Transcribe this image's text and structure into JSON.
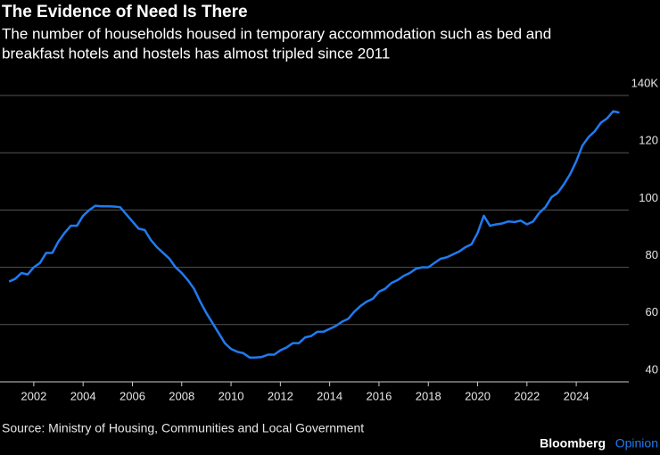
{
  "chart_data": {
    "type": "line",
    "title": "The Evidence of Need Is There",
    "subtitle": [
      "The number of households housed in temporary accommodation such as bed and",
      "breakfast hotels and hostels has almost tripled since 2011"
    ],
    "source": "Source: Ministry of Housing, Communities and Local Government",
    "brand": [
      "Bloomberg",
      "Opinion"
    ],
    "grid": true,
    "xlim": [
      2000.63,
      2026.13
    ],
    "xticks": [
      2002,
      2004,
      2006,
      2008,
      2010,
      2012,
      2014,
      2016,
      2018,
      2020,
      2022,
      2024
    ],
    "ylim": [
      40,
      140
    ],
    "yticks": [
      40,
      60,
      80,
      100,
      120,
      {
        "value": 140,
        "label": "140K"
      }
    ],
    "x": [
      2001.0,
      2001.25,
      2001.5,
      2001.75,
      2002.0,
      2002.25,
      2002.5,
      2002.75,
      2003.0,
      2003.25,
      2003.5,
      2003.75,
      2004.0,
      2004.25,
      2004.5,
      2004.75,
      2005.0,
      2005.25,
      2005.5,
      2005.75,
      2006.0,
      2006.25,
      2006.5,
      2006.75,
      2007.0,
      2007.25,
      2007.5,
      2007.75,
      2008.0,
      2008.25,
      2008.5,
      2008.75,
      2009.0,
      2009.25,
      2009.5,
      2009.75,
      2010.0,
      2010.25,
      2010.5,
      2010.75,
      2011.0,
      2011.25,
      2011.5,
      2011.75,
      2012.0,
      2012.25,
      2012.5,
      2012.75,
      2013.0,
      2013.25,
      2013.5,
      2013.75,
      2014.0,
      2014.25,
      2014.5,
      2014.75,
      2015.0,
      2015.25,
      2015.5,
      2015.75,
      2016.0,
      2016.25,
      2016.5,
      2016.75,
      2017.0,
      2017.25,
      2017.5,
      2017.75,
      2018.0,
      2018.25,
      2018.5,
      2018.75,
      2019.0,
      2019.25,
      2019.5,
      2019.75,
      2020.0,
      2020.25,
      2020.5,
      2020.75,
      2021.0,
      2021.25,
      2021.5,
      2021.75,
      2022.0,
      2022.25,
      2022.5,
      2022.75,
      2023.0,
      2023.25,
      2023.5,
      2023.75,
      2024.0,
      2024.25,
      2024.5,
      2024.75,
      2025.0,
      2025.25,
      2025.5,
      2025.75
    ],
    "series": [
      {
        "color": "#1f7bf0",
        "values": [
          75,
          76,
          78,
          77.5,
          80,
          81.5,
          85,
          85,
          89,
          92,
          94.5,
          94.5,
          98,
          100,
          101.5,
          101.3,
          101.3,
          101.2,
          101,
          98.5,
          96,
          93.5,
          93,
          89.5,
          87,
          85,
          83,
          80,
          78,
          75.5,
          72.5,
          68,
          64,
          60.5,
          57,
          53.5,
          51.5,
          50.5,
          50,
          48.5,
          48.5,
          48.7,
          49.5,
          49.5,
          51,
          52,
          53.5,
          53.5,
          55.5,
          56,
          57.5,
          57.5,
          58.5,
          59.5,
          61,
          62,
          64.5,
          66.5,
          68,
          69,
          71.5,
          72.5,
          74.5,
          75.5,
          77,
          78,
          79.5,
          80,
          80,
          81.5,
          83,
          83.5,
          84.5,
          85.5,
          87,
          88,
          92,
          98,
          94.5,
          95,
          95.3,
          96,
          95.8,
          96.3,
          95,
          96,
          99,
          101,
          104.5,
          106,
          109,
          112.5,
          117,
          122.5,
          125.5,
          127.5,
          130.5,
          132,
          134.5,
          134
        ]
      }
    ]
  }
}
